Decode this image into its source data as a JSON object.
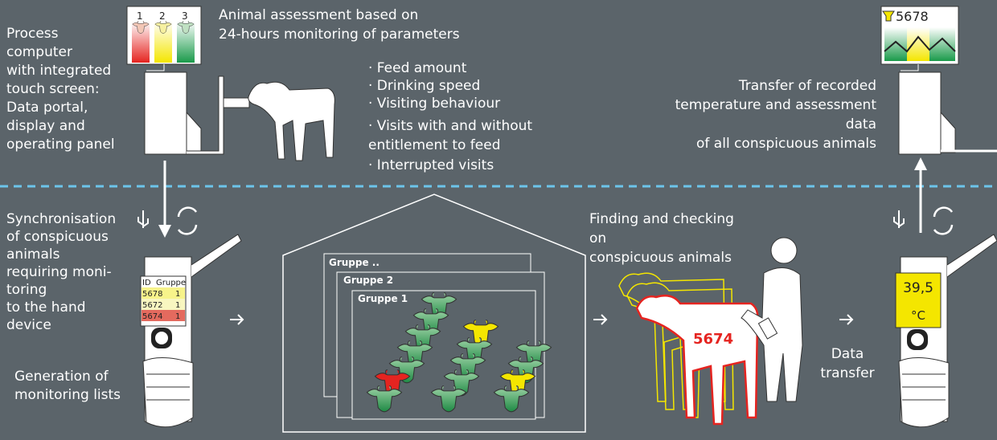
{
  "left_top": {
    "lines": [
      "Process",
      "computer",
      "with integrated",
      "touch screen:",
      "Data portal,",
      "display and",
      "operating panel"
    ],
    "screen_numbers": [
      "1",
      "2",
      "3"
    ]
  },
  "assessment": {
    "title_lines": [
      "Animal assessment based on",
      "24-hours monitoring of parameters"
    ],
    "parameters": [
      "· Feed amount",
      "· Drinking speed",
      "· Visiting behaviour",
      "· Visits with and without",
      "entitlement to feed",
      "· Interrupted visits"
    ]
  },
  "right_top": {
    "screen_id": "5678",
    "lines": [
      "Transfer of recorded",
      "temperature and assessment",
      "data",
      "of all conspicuous animals"
    ]
  },
  "left_bottom": {
    "sync_lines": [
      "Synchronisation",
      "of    conspicuous",
      "animals",
      "requiring moni-",
      "toring",
      "to the hand",
      "device"
    ],
    "generation_lines": [
      "Generation of",
      "monitoring lists"
    ],
    "handheld_table": {
      "header": [
        "ID",
        "Gruppe"
      ],
      "rows": [
        [
          "5678",
          "1"
        ],
        [
          "5672",
          "1"
        ],
        [
          "5674",
          "1"
        ]
      ]
    }
  },
  "barn": {
    "groups": [
      "Gruppe ..",
      "Gruppe 2",
      "Gruppe 1"
    ]
  },
  "finding": {
    "lines": [
      "Finding and checking",
      "on",
      "conspicuous animals"
    ],
    "calf_id": "5674"
  },
  "right_bottom": {
    "transfer_lines": [
      "Data",
      "transfer"
    ],
    "display_lines": [
      "39,5",
      "°C"
    ]
  }
}
